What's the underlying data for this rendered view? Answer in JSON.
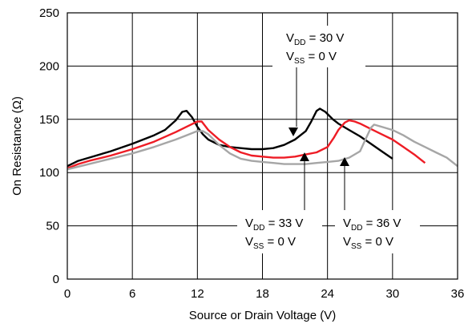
{
  "chart_data": {
    "type": "line",
    "xlabel": "Source or Drain Voltage (V)",
    "ylabel": "On Resistance (Ω)",
    "xlim": [
      0,
      36
    ],
    "ylim": [
      0,
      250
    ],
    "xticks": [
      0,
      6,
      12,
      18,
      24,
      30,
      36
    ],
    "yticks": [
      0,
      50,
      100,
      150,
      200,
      250
    ],
    "grid": true,
    "series": [
      {
        "color": "#000000",
        "points": [
          [
            0,
            106
          ],
          [
            1,
            111
          ],
          [
            2,
            114
          ],
          [
            4,
            120
          ],
          [
            6,
            127
          ],
          [
            8,
            135
          ],
          [
            9,
            140
          ],
          [
            10,
            149
          ],
          [
            10.6,
            157
          ],
          [
            11,
            158
          ],
          [
            11.5,
            152
          ],
          [
            12,
            143
          ],
          [
            12.5,
            136
          ],
          [
            13,
            131
          ],
          [
            14,
            126
          ],
          [
            15,
            124
          ],
          [
            16,
            123
          ],
          [
            17,
            122
          ],
          [
            18,
            122
          ],
          [
            19,
            123
          ],
          [
            20,
            126
          ],
          [
            21,
            131
          ],
          [
            22,
            139
          ],
          [
            22.5,
            148
          ],
          [
            23,
            158
          ],
          [
            23.3,
            160
          ],
          [
            23.8,
            157
          ],
          [
            24.5,
            150
          ],
          [
            25,
            146
          ],
          [
            26,
            140
          ],
          [
            27,
            134
          ],
          [
            28,
            127
          ],
          [
            29,
            120
          ],
          [
            30,
            113
          ]
        ]
      },
      {
        "color": "#ee1c25",
        "points": [
          [
            0,
            104
          ],
          [
            1,
            108
          ],
          [
            2,
            111
          ],
          [
            4,
            116
          ],
          [
            6,
            122
          ],
          [
            8,
            129
          ],
          [
            10,
            138
          ],
          [
            11,
            143
          ],
          [
            12,
            148
          ],
          [
            12.4,
            148
          ],
          [
            13,
            140
          ],
          [
            14,
            131
          ],
          [
            15,
            124
          ],
          [
            16,
            119
          ],
          [
            17,
            116
          ],
          [
            18,
            115
          ],
          [
            19,
            114
          ],
          [
            20,
            114
          ],
          [
            21,
            115
          ],
          [
            22,
            117
          ],
          [
            23,
            119
          ],
          [
            24,
            124
          ],
          [
            24.6,
            133
          ],
          [
            25,
            140
          ],
          [
            25.6,
            147
          ],
          [
            26,
            149
          ],
          [
            26.5,
            148
          ],
          [
            27,
            146
          ],
          [
            28,
            141
          ],
          [
            29,
            136
          ],
          [
            30,
            131
          ],
          [
            31,
            124
          ],
          [
            32,
            117
          ],
          [
            33,
            109
          ]
        ]
      },
      {
        "color": "#a6a6a6",
        "points": [
          [
            0,
            103
          ],
          [
            2,
            108
          ],
          [
            4,
            113
          ],
          [
            6,
            118
          ],
          [
            8,
            124
          ],
          [
            10,
            131
          ],
          [
            11,
            135
          ],
          [
            12,
            139
          ],
          [
            12.5,
            139
          ],
          [
            13,
            136
          ],
          [
            14,
            126
          ],
          [
            15,
            118
          ],
          [
            16,
            113
          ],
          [
            17,
            111
          ],
          [
            18,
            110
          ],
          [
            19,
            109
          ],
          [
            20,
            108
          ],
          [
            21,
            108
          ],
          [
            22,
            108
          ],
          [
            23,
            109
          ],
          [
            24,
            110
          ],
          [
            25,
            111
          ],
          [
            26,
            114
          ],
          [
            27,
            120
          ],
          [
            27.5,
            131
          ],
          [
            28,
            142
          ],
          [
            28.3,
            145
          ],
          [
            29,
            143
          ],
          [
            30,
            140
          ],
          [
            31,
            135
          ],
          [
            32,
            129
          ],
          [
            33,
            124
          ],
          [
            34,
            119
          ],
          [
            35,
            114
          ],
          [
            36,
            106
          ]
        ]
      }
    ],
    "annotations": [
      {
        "lines": [
          [
            "V",
            "DD",
            " = 30 V"
          ],
          [
            "V",
            "SS",
            " = 0 V"
          ]
        ]
      },
      {
        "lines": [
          [
            "V",
            "DD",
            " = 33 V"
          ],
          [
            "V",
            "SS",
            " = 0 V"
          ]
        ]
      },
      {
        "lines": [
          [
            "V",
            "DD",
            " = 36 V"
          ],
          [
            "V",
            "SS",
            " = 0 V"
          ]
        ]
      }
    ]
  }
}
